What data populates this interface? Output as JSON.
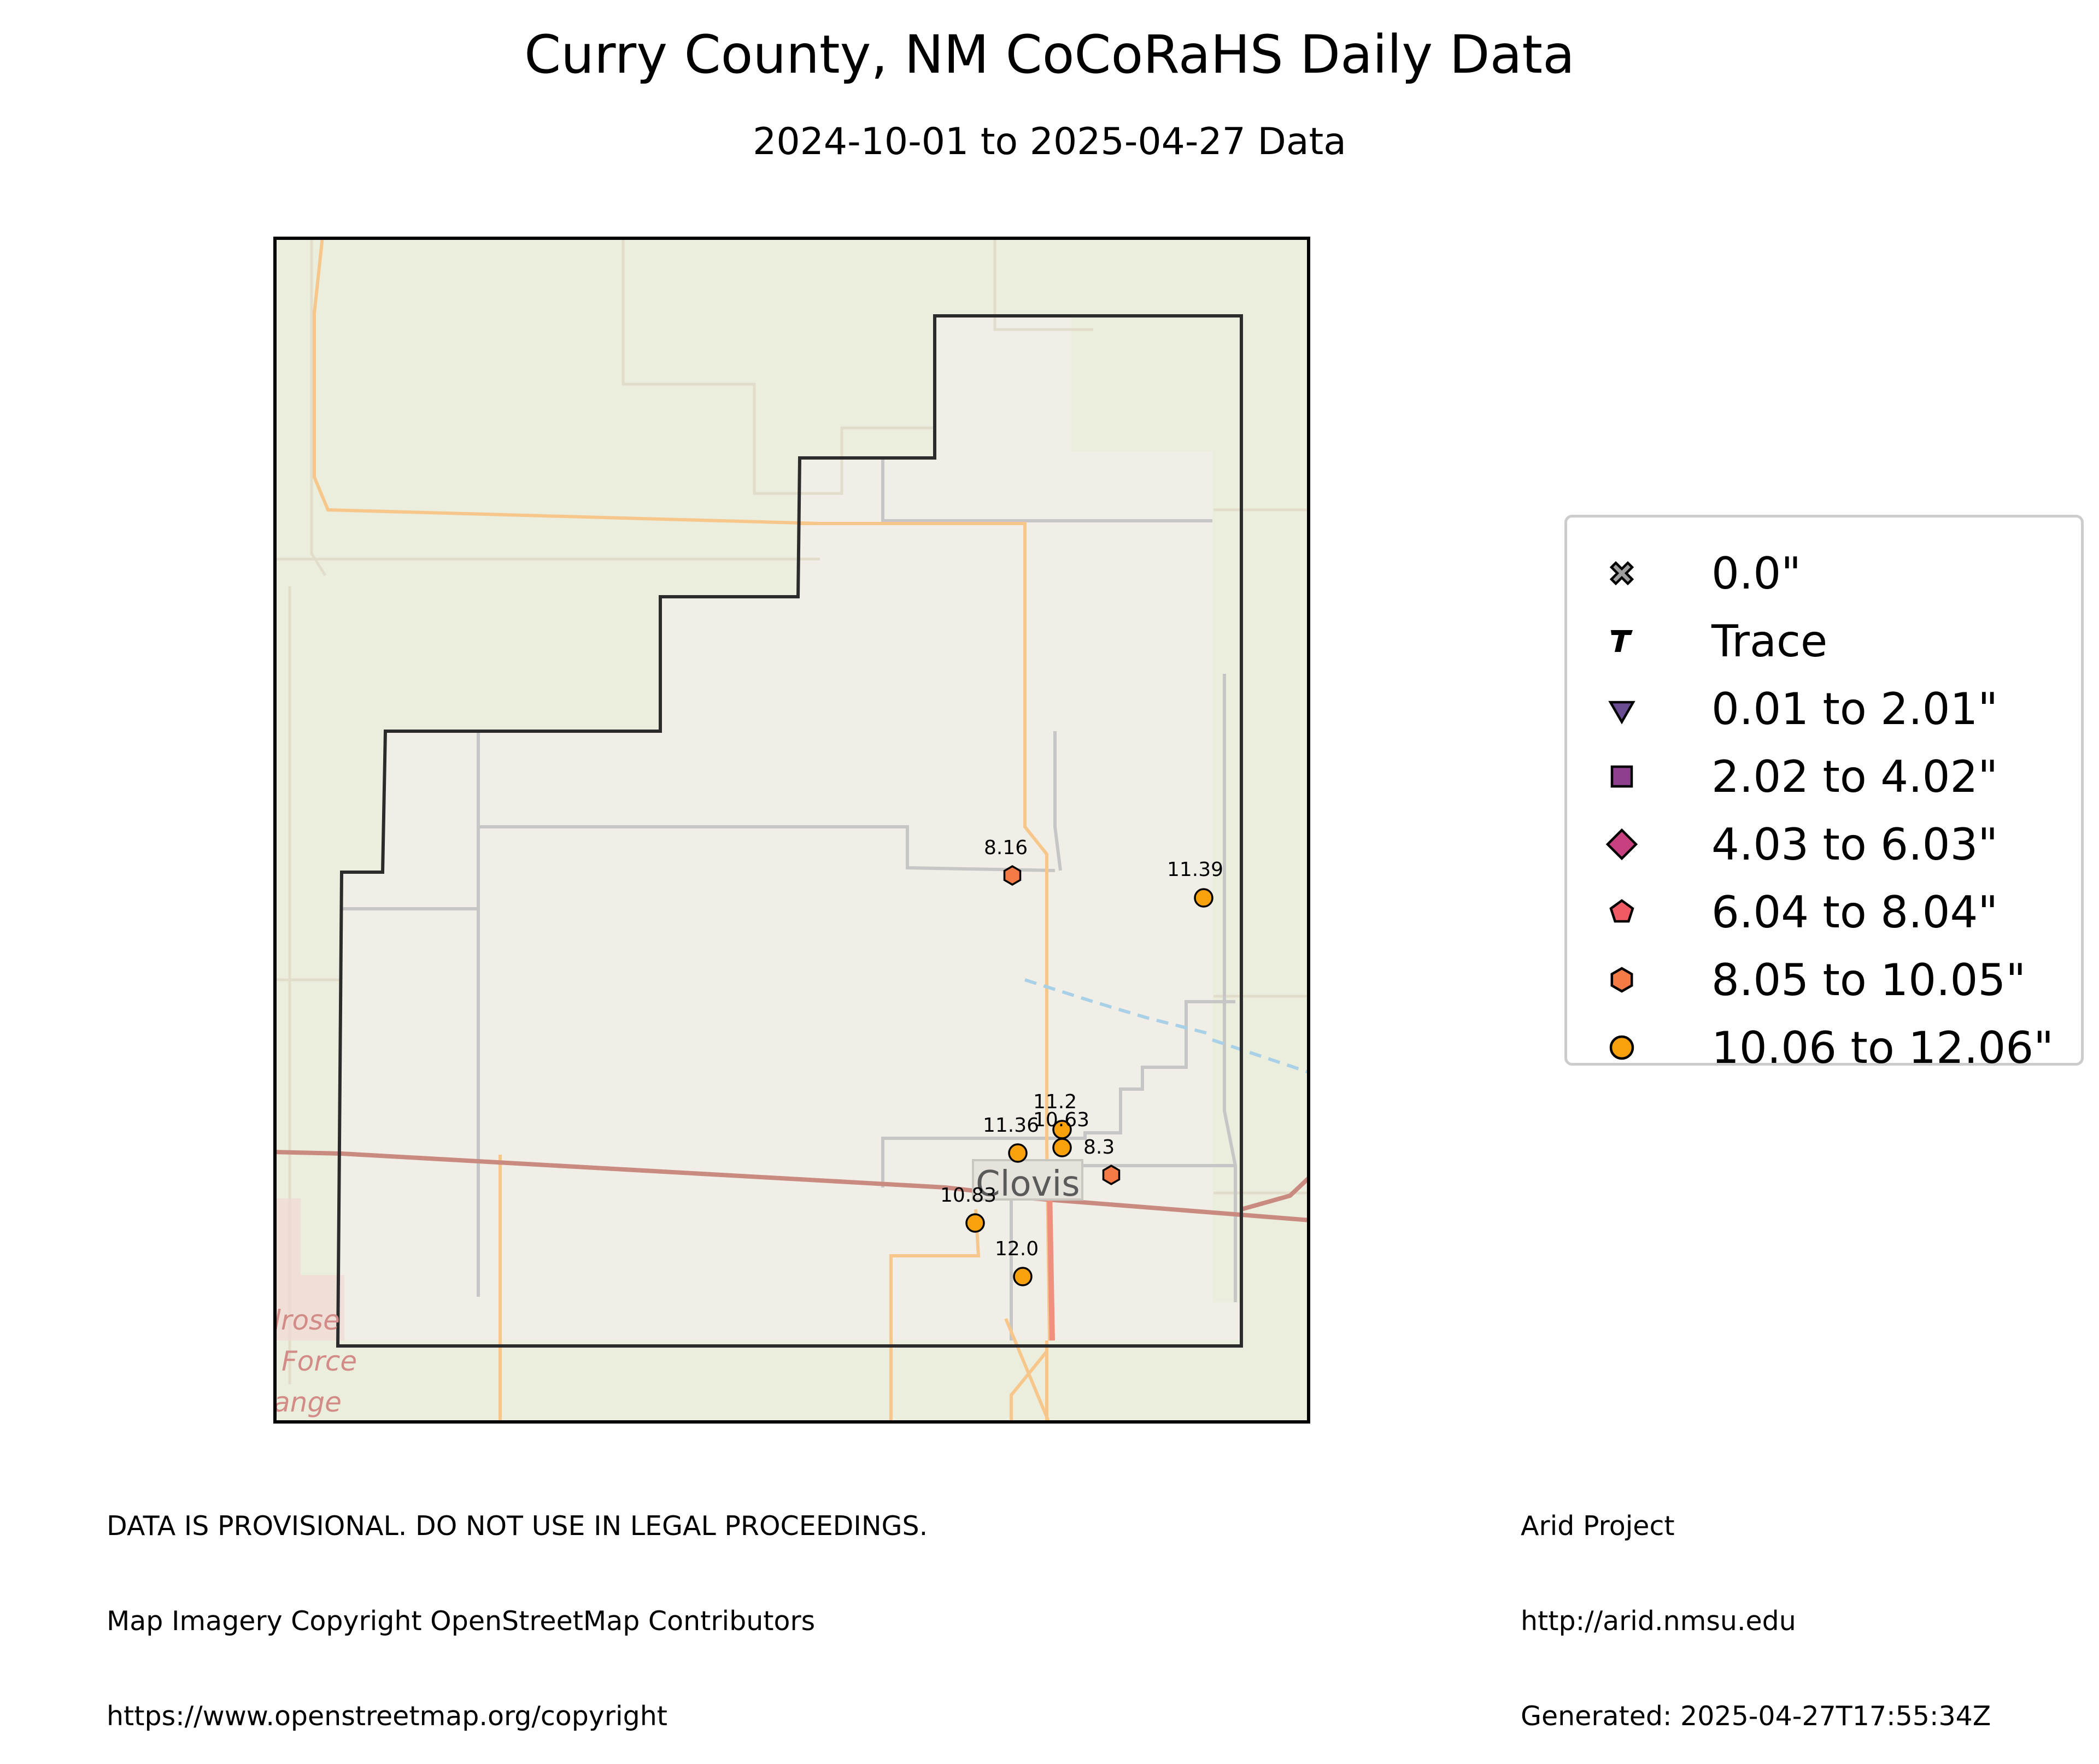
{
  "title": "Curry County, NM CoCoRaHS Daily Data",
  "subtitle": "2024-10-01 to 2025-04-27 Data",
  "map": {
    "place_label": "Clovis",
    "basemap_partial_text": [
      "lrose",
      "Force",
      "ange"
    ],
    "stations": [
      {
        "label": "8.16",
        "value": 8.16,
        "category": "8.05 to 10.05\""
      },
      {
        "label": "11.39",
        "value": 11.39,
        "category": "10.06 to 12.06\""
      },
      {
        "label": "11.2",
        "value": 11.2,
        "category": "10.06 to 12.06\""
      },
      {
        "label": "10.63",
        "value": 10.63,
        "category": "10.06 to 12.06\""
      },
      {
        "label": "11.36",
        "value": 11.36,
        "category": "10.06 to 12.06\""
      },
      {
        "label": "8.3",
        "value": 8.3,
        "category": "8.05 to 10.05\""
      },
      {
        "label": "10.83",
        "value": 10.83,
        "category": "10.06 to 12.06\""
      },
      {
        "label": "12.0",
        "value": 12.0,
        "category": "10.06 to 12.06\""
      }
    ]
  },
  "legend": [
    {
      "label": "0.0\"",
      "symbol": "x-marker",
      "color": "#9e9e9e"
    },
    {
      "label": "Trace",
      "symbol": "t-marker",
      "color": "#000000"
    },
    {
      "label": "0.01 to 2.01\"",
      "symbol": "triangle-down",
      "color": "#6a4c93"
    },
    {
      "label": "2.02 to 4.02\"",
      "symbol": "square",
      "color": "#8e3f8e"
    },
    {
      "label": "4.03 to 6.03\"",
      "symbol": "diamond",
      "color": "#c8407f"
    },
    {
      "label": "6.04 to 8.04\"",
      "symbol": "pentagon",
      "color": "#f05a64"
    },
    {
      "label": "8.05 to 10.05\"",
      "symbol": "hexagon",
      "color": "#f47b45"
    },
    {
      "label": "10.06 to 12.06\"",
      "symbol": "circle",
      "color": "#f9a10a"
    }
  ],
  "footer_left": [
    "DATA IS PROVISIONAL. DO NOT USE IN LEGAL PROCEEDINGS.",
    "Map Imagery Copyright OpenStreetMap Contributors",
    "https://www.openstreetmap.org/copyright"
  ],
  "footer_right": [
    "Arid Project",
    "http://arid.nmsu.edu",
    "Generated: 2025-04-27T17:55:34Z"
  ]
}
